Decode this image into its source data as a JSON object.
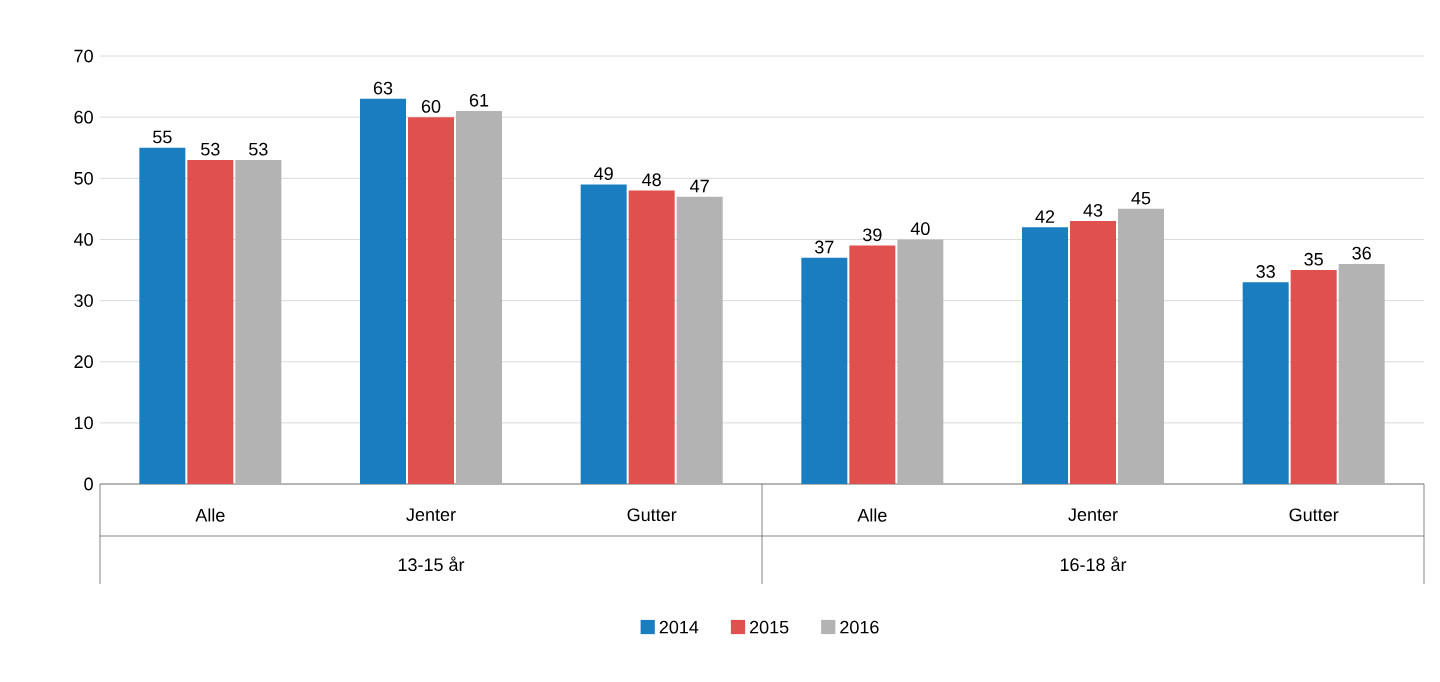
{
  "chart_data": {
    "type": "bar",
    "categories": [
      "Alle",
      "Jenter",
      "Gutter",
      "Alle",
      "Jenter",
      "Gutter"
    ],
    "series": [
      {
        "name": "2014",
        "color": "#1a7dc0",
        "values": [
          55,
          63,
          49,
          37,
          42,
          33
        ]
      },
      {
        "name": "2015",
        "color": "#e0504f",
        "values": [
          53,
          60,
          48,
          39,
          43,
          35
        ]
      },
      {
        "name": "2016",
        "color": "#b3b3b3",
        "values": [
          53,
          61,
          47,
          40,
          45,
          36
        ]
      }
    ],
    "annotations": [
      "13-15 år",
      "16-18 år"
    ],
    "ylim": [
      0,
      70
    ],
    "yticks": [
      0,
      10,
      20,
      30,
      40,
      50,
      60,
      70
    ],
    "grid": "y",
    "legend": "bottom",
    "data_labels": true
  }
}
